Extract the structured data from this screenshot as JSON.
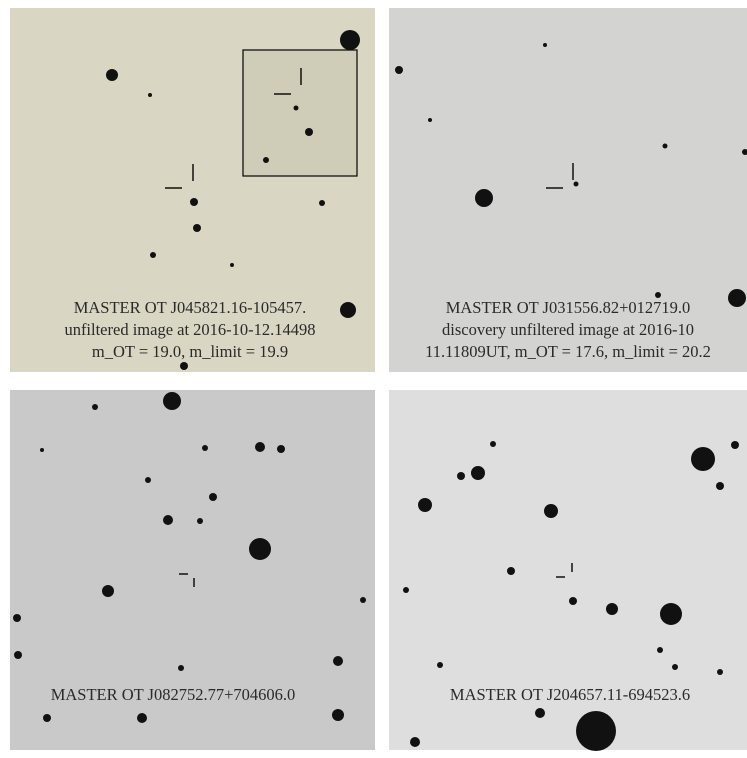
{
  "panels": [
    {
      "caption": [
        "MASTER OT J045821.16-105457.",
        "unfiltered image at 2016-10-12.14498",
        "m_OT = 19.0, m_limit = 19.9"
      ]
    },
    {
      "caption": [
        "MASTER OT J031556.82+012719.0",
        "discovery unfiltered image at 2016-10",
        "11.11809UT, m_OT = 17.6, m_limit = 20.2"
      ]
    },
    {
      "caption": [
        "MASTER OT J082752.77+704606.0"
      ]
    },
    {
      "caption": [
        "MASTER OT J204657.11-694523.6"
      ]
    }
  ]
}
